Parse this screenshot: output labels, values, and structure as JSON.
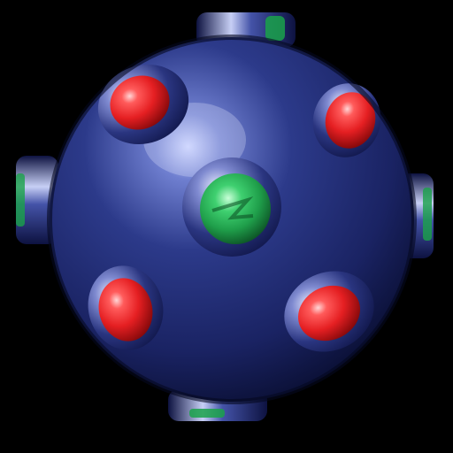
{
  "icon": {
    "name": "spiked-ball-icon",
    "background_color": "#000000",
    "sphere_color": "#1f2a6e",
    "sphere_highlight_color": "#c9d2ff",
    "socket_color": "#2c3a86",
    "gem_red_color": "#e51f22",
    "gem_green_color": "#1f9e4a",
    "socket_count": 9,
    "gem_colors_visible": [
      "red",
      "red",
      "red",
      "red",
      "green"
    ]
  }
}
